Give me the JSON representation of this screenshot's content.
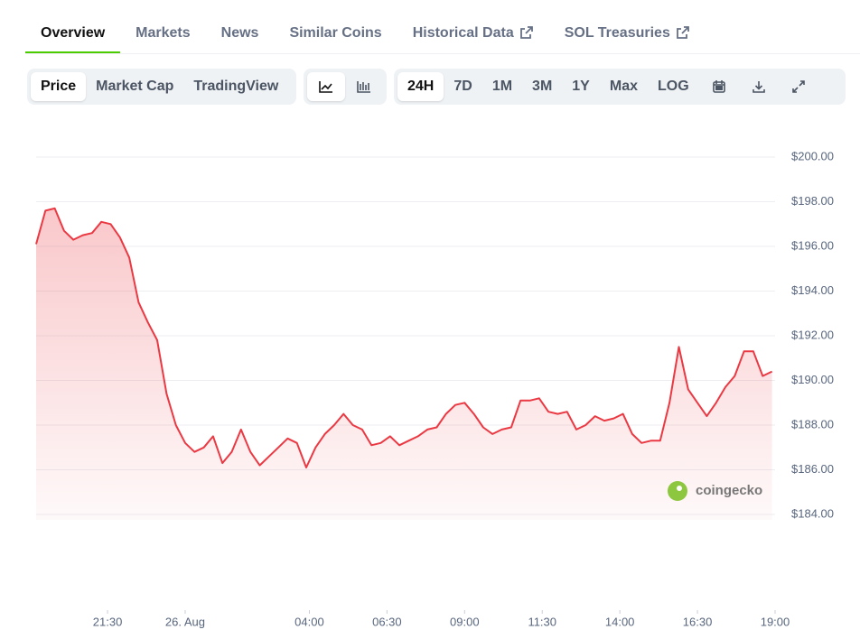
{
  "tabs": [
    "Overview",
    "Markets",
    "News",
    "Similar Coins",
    "Historical Data",
    "SOL Treasuries"
  ],
  "chart_modes": [
    "Price",
    "Market Cap",
    "TradingView"
  ],
  "ranges": [
    "24H",
    "7D",
    "1M",
    "3M",
    "1Y",
    "Max",
    "LOG"
  ],
  "watermark": "coingecko",
  "chart_data": {
    "type": "area",
    "series": [
      {
        "color": "#ea3943",
        "x": [
          -4.8,
          -4.5,
          -4.2,
          -3.9,
          -3.6,
          -3.3,
          -3.0,
          -2.7,
          -2.4,
          -2.1,
          -1.8,
          -1.5,
          -1.2,
          -0.9,
          -0.6,
          -0.3,
          0,
          0.3,
          0.6,
          0.9,
          1.2,
          1.5,
          1.8,
          2.1,
          2.4,
          2.7,
          3.0,
          3.3,
          3.6,
          3.9,
          4.2,
          4.5,
          4.8,
          5.1,
          5.4,
          5.7,
          6.0,
          6.3,
          6.6,
          6.9,
          7.2,
          7.5,
          7.8,
          8.1,
          8.4,
          8.7,
          9.0,
          9.3,
          9.6,
          9.9,
          10.2,
          10.5,
          10.8,
          11.1,
          11.4,
          11.7,
          12.0,
          12.3,
          12.6,
          12.9,
          13.2,
          13.5,
          13.8,
          14.1,
          14.4,
          14.7,
          15.0,
          15.3,
          15.6,
          15.9,
          16.2,
          16.5,
          16.8,
          17.1,
          17.4,
          17.7,
          18.0,
          18.3,
          18.6,
          18.9
        ],
        "values": [
          196.1,
          197.6,
          197.7,
          196.7,
          196.3,
          196.5,
          196.6,
          197.1,
          197.0,
          196.4,
          195.5,
          193.5,
          192.6,
          191.8,
          189.4,
          188.0,
          187.2,
          186.8,
          187.0,
          187.5,
          186.3,
          186.8,
          187.8,
          186.8,
          186.2,
          186.6,
          187.0,
          187.4,
          187.2,
          186.1,
          187.0,
          187.6,
          188.0,
          188.5,
          188.0,
          187.8,
          187.1,
          187.2,
          187.5,
          187.1,
          187.3,
          187.5,
          187.8,
          187.9,
          188.5,
          188.9,
          189.0,
          188.5,
          187.9,
          187.6,
          187.8,
          187.9,
          189.1,
          189.1,
          189.2,
          188.6,
          188.5,
          188.6,
          187.8,
          188.0,
          188.4,
          188.2,
          188.3,
          188.5,
          187.6,
          187.2,
          187.3,
          187.3,
          189.0,
          191.5,
          189.6,
          189.0,
          188.4,
          189.0,
          189.7,
          190.2,
          191.3,
          191.3,
          190.2,
          190.4
        ]
      }
    ],
    "xlim": [
      -4.8,
      19
    ],
    "xticks": [
      {
        "value": -2.5,
        "label": "21:30"
      },
      {
        "value": 0,
        "label": "26. Aug"
      },
      {
        "value": 4,
        "label": "04:00"
      },
      {
        "value": 6.5,
        "label": "06:30"
      },
      {
        "value": 9,
        "label": "09:00"
      },
      {
        "value": 11.5,
        "label": "11:30"
      },
      {
        "value": 14,
        "label": "14:00"
      },
      {
        "value": 16.5,
        "label": "16:30"
      },
      {
        "value": 19,
        "label": "19:00"
      }
    ],
    "ylim": [
      184,
      200
    ],
    "yticks": [
      {
        "value": 184,
        "label": "$184.00"
      },
      {
        "value": 186,
        "label": "$186.00"
      },
      {
        "value": 188,
        "label": "$188.00"
      },
      {
        "value": 190,
        "label": "$190.00"
      },
      {
        "value": 192,
        "label": "$192.00"
      },
      {
        "value": 194,
        "label": "$194.00"
      },
      {
        "value": 196,
        "label": "$196.00"
      },
      {
        "value": 198,
        "label": "$198.00"
      },
      {
        "value": 200,
        "label": "$200.00"
      }
    ],
    "grid": true
  }
}
